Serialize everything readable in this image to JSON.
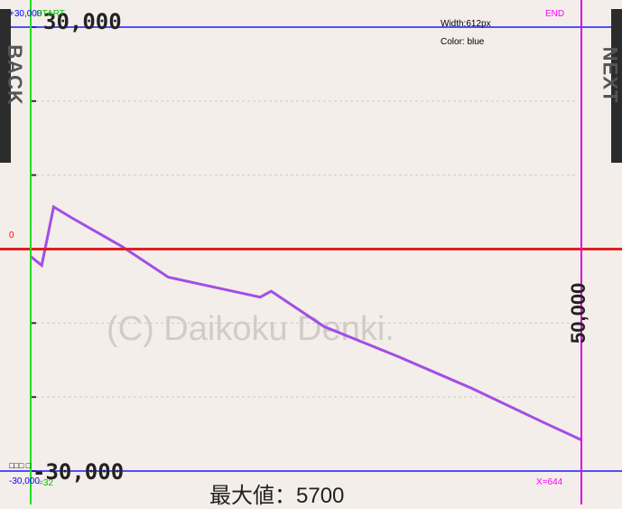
{
  "nav": {
    "back_label": "BACK",
    "next_label": "NEXT"
  },
  "overlay": {
    "top_value": "+30,000",
    "start_label": "START",
    "end_label": "END",
    "width_label": "Width:612px",
    "color_label": "Color: blue",
    "zero_label": "0",
    "bottom_value": "-30,000",
    "x_start_label": "=32",
    "x_end_label": "X=644",
    "small_bottom_text": "□□□ □"
  },
  "chart_text": {
    "top_tick": "30,000",
    "bottom_tick": "-30,000",
    "right_tick": "50,000",
    "watermark": "(C) Daikoku Denki.",
    "max_label": "最大値：5700"
  },
  "colors": {
    "background": "#f3eee9",
    "line": "#a24ee6",
    "zero_line": "#e02020",
    "boundary_blue": "#1a1aff",
    "start_green": "#22dd22",
    "end_magenta": "#e000e0"
  },
  "chart_data": {
    "type": "line",
    "title": "",
    "xlabel": "",
    "ylabel": "",
    "ylim": [
      -30000,
      30000
    ],
    "xlim": [
      0,
      6000
    ],
    "grid": true,
    "series": [
      {
        "x": [
          0,
          120,
          250,
          450,
          1000,
          1500,
          2500,
          2620,
          3200,
          4000,
          4800,
          5600,
          6000
        ],
        "values": [
          -1000,
          -2200,
          5700,
          4200,
          300,
          -3800,
          -6500,
          -5700,
          -10500,
          -14500,
          -18800,
          -23500,
          -25800
        ]
      }
    ]
  }
}
